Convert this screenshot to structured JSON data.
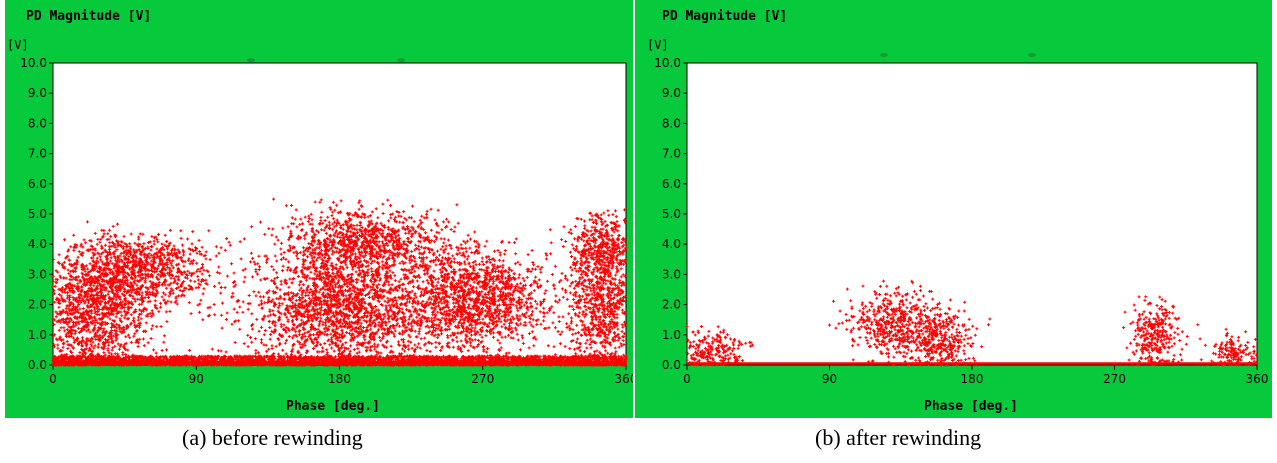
{
  "chart_data": [
    {
      "type": "scatter",
      "panel_title": "PD Magnitude [V]",
      "ylabel_unit": "[V]",
      "xlabel": "Phase [deg.]",
      "xlim": [
        0,
        360
      ],
      "ylim": [
        0,
        10
      ],
      "x_ticks": [
        "0",
        "90",
        "180",
        "270",
        "360"
      ],
      "y_ticks": [
        "0.0",
        "1.0",
        "2.0",
        "3.0",
        "4.0",
        "5.0",
        "6.0",
        "7.0",
        "8.0",
        "9.0",
        "10.0"
      ],
      "grid": false,
      "marker_color": "#ff0000",
      "caption": "(a) before rewinding",
      "distribution": {
        "baseline_band": {
          "x": [
            0,
            360
          ],
          "y": [
            0,
            0.3
          ]
        },
        "clusters": [
          {
            "x_center": 25,
            "x_spread": 35,
            "y_center": 1.8,
            "y_spread": 1.3,
            "y_max": 5.2
          },
          {
            "x_center": 55,
            "x_spread": 40,
            "y_center": 3.2,
            "y_spread": 0.8,
            "y_max": 4.5
          },
          {
            "x_center": 180,
            "x_spread": 55,
            "y_center": 1.8,
            "y_spread": 1.2,
            "y_max": 5.7
          },
          {
            "x_center": 195,
            "x_spread": 45,
            "y_center": 4.0,
            "y_spread": 0.8,
            "y_max": 5.5
          },
          {
            "x_center": 265,
            "x_spread": 45,
            "y_center": 2.2,
            "y_spread": 1.2,
            "y_max": 4.2
          },
          {
            "x_center": 345,
            "x_spread": 20,
            "y_center": 2.0,
            "y_spread": 1.4,
            "y_max": 5.2
          },
          {
            "x_center": 345,
            "x_spread": 18,
            "y_center": 4.0,
            "y_spread": 0.7,
            "y_max": 5.2
          }
        ],
        "approx_point_count": 12000
      }
    },
    {
      "type": "scatter",
      "panel_title": "PD Magnitude [V]",
      "ylabel_unit": "[V]",
      "xlabel": "Phase [deg.]",
      "xlim": [
        0,
        360
      ],
      "ylim": [
        0,
        10
      ],
      "x_ticks": [
        "0",
        "90",
        "180",
        "270",
        "360"
      ],
      "y_ticks": [
        "0.0",
        "1.0",
        "2.0",
        "3.0",
        "4.0",
        "5.0",
        "6.0",
        "7.0",
        "8.0",
        "9.0",
        "10.0"
      ],
      "grid": false,
      "marker_color": "#ff0000",
      "caption": "(b) after rewinding",
      "distribution": {
        "baseline_line": {
          "x": [
            0,
            360
          ],
          "y": 0.05
        },
        "clusters": [
          {
            "x_center": 15,
            "x_spread": 20,
            "y_center": 0.4,
            "y_spread": 0.5,
            "y_max": 2.2
          },
          {
            "x_center": 130,
            "x_spread": 25,
            "y_center": 1.3,
            "y_spread": 0.8,
            "y_max": 2.8
          },
          {
            "x_center": 160,
            "x_spread": 20,
            "y_center": 0.8,
            "y_spread": 0.7,
            "y_max": 2.6
          },
          {
            "x_center": 295,
            "x_spread": 15,
            "y_center": 1.0,
            "y_spread": 0.8,
            "y_max": 2.5
          },
          {
            "x_center": 345,
            "x_spread": 15,
            "y_center": 0.4,
            "y_spread": 0.4,
            "y_max": 2.0
          }
        ],
        "approx_point_count": 1500
      }
    }
  ]
}
